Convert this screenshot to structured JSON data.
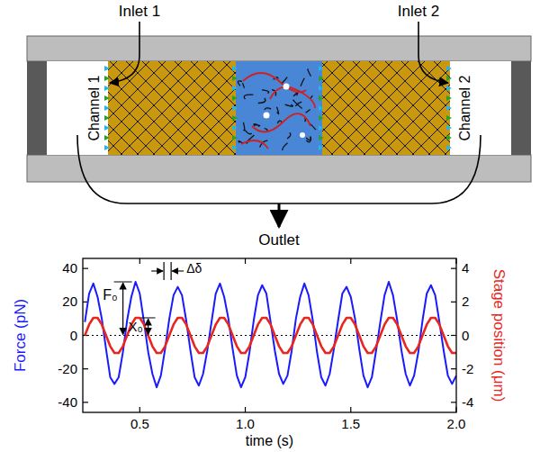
{
  "diagram": {
    "inlet_1": "Inlet 1",
    "inlet_2": "Inlet 2",
    "channel_1": "Channel 1",
    "channel_2": "Channel 2",
    "outlet": "Outlet"
  },
  "chart_data": {
    "type": "line",
    "x_label": "time (s)",
    "y_label": "Force (pN)",
    "y2_label": "Stage position (μm)",
    "x": [
      0.24,
      0.26,
      0.28,
      0.3,
      0.32,
      0.34,
      0.36,
      0.38,
      0.4,
      0.42,
      0.44,
      0.46,
      0.48,
      0.5,
      0.52,
      0.54,
      0.56,
      0.58,
      0.6,
      0.62,
      0.64,
      0.66,
      0.68,
      0.7,
      0.72,
      0.74,
      0.76,
      0.78,
      0.8,
      0.82,
      0.84,
      0.86,
      0.88,
      0.9,
      0.92,
      0.94,
      0.96,
      0.98,
      1,
      1.02,
      1.04,
      1.06,
      1.08,
      1.1,
      1.12,
      1.14,
      1.16,
      1.18,
      1.2,
      1.22,
      1.24,
      1.26,
      1.28,
      1.3,
      1.32,
      1.34,
      1.36,
      1.38,
      1.4,
      1.42,
      1.44,
      1.46,
      1.48,
      1.5,
      1.52,
      1.54,
      1.56,
      1.58,
      1.6,
      1.62,
      1.64,
      1.66,
      1.68,
      1.7,
      1.72,
      1.74,
      1.76,
      1.78,
      1.8,
      1.82,
      1.84,
      1.86,
      1.88,
      1.9,
      1.92,
      1.94,
      1.96,
      1.98,
      2
    ],
    "xlim": [
      0.23,
      2.0
    ],
    "xticks": [
      0.5,
      {
        "value": 1,
        "label": "1.0"
      },
      1.5,
      {
        "value": 2,
        "label": "2.0"
      }
    ],
    "ylim": [
      -46,
      46
    ],
    "yticks": [
      -40,
      -20,
      0,
      20,
      40
    ],
    "y2lim": [
      -4.6,
      4.6
    ],
    "y2ticks": [
      -4,
      -2,
      0,
      2,
      4
    ],
    "grid": false,
    "series": [
      {
        "color": "#1a1aff",
        "values": [
          8,
          25,
          31,
          23,
          10,
          -8,
          -25,
          -29,
          -25,
          -10,
          9,
          23,
          32,
          25,
          8,
          -10,
          -23,
          -31,
          -24,
          -8,
          10,
          24,
          29,
          24,
          9,
          -9,
          -25,
          -30,
          -23,
          -9,
          8,
          25,
          31,
          23,
          10,
          -8,
          -24,
          -31,
          -25,
          -10,
          9,
          24,
          30,
          25,
          8,
          -9,
          -23,
          -29,
          -24,
          -9,
          10,
          23,
          31,
          24,
          9,
          -10,
          -25,
          -30,
          -23,
          -8,
          9,
          25,
          29,
          23,
          10,
          -8,
          -24,
          -31,
          -25,
          -9,
          8,
          24,
          32,
          24,
          9,
          -9,
          -23,
          -30,
          -24,
          -10,
          9,
          25,
          30,
          24,
          8,
          -9,
          -24,
          -29,
          -24
        ]
      },
      {
        "color": "#e8261e",
        "axis": "y2",
        "values": [
          0,
          0.65,
          1.05,
          1.05,
          0.65,
          0,
          -0.65,
          -1.05,
          -1.05,
          -0.65,
          0,
          0.65,
          1.05,
          1.05,
          0.65,
          0,
          -0.65,
          -1.05,
          -1.05,
          -0.65,
          0,
          0.65,
          1.05,
          1.05,
          0.65,
          0,
          -0.65,
          -1.05,
          -1.05,
          -0.65,
          0,
          0.65,
          1.05,
          1.05,
          0.65,
          0,
          -0.65,
          -1.05,
          -1.05,
          -0.65,
          0,
          0.65,
          1.05,
          1.05,
          0.65,
          0,
          -0.65,
          -1.05,
          -1.05,
          -0.65,
          0,
          0.65,
          1.05,
          1.05,
          0.65,
          0,
          -0.65,
          -1.05,
          -1.05,
          -0.65,
          0,
          0.65,
          1.05,
          1.05,
          0.65,
          0,
          -0.65,
          -1.05,
          -1.05,
          -0.65,
          0,
          0.65,
          1.05,
          1.05,
          0.65,
          0,
          -0.65,
          -1.05,
          -1.05,
          -0.65,
          0,
          0.65,
          1.05,
          1.05,
          0.65,
          0,
          -0.65,
          -1.05,
          -1.05
        ]
      }
    ],
    "annotations": [
      "F₀",
      "X₀",
      "Δδ"
    ]
  }
}
